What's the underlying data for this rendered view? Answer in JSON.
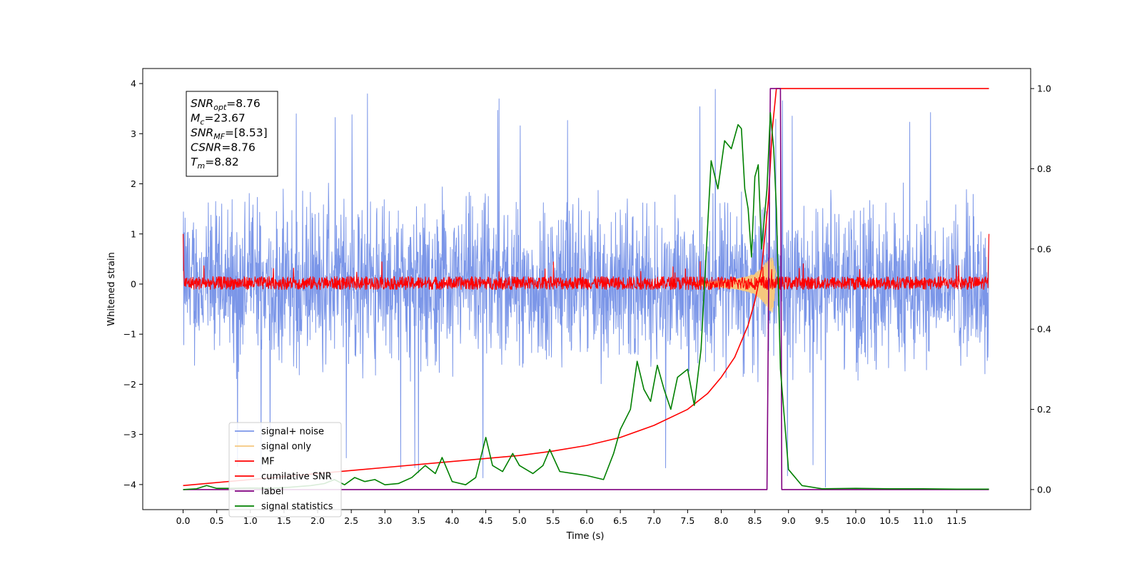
{
  "chart_data": {
    "type": "line",
    "title": "",
    "xlabel": "Time (s)",
    "ylabel": "Whitened strain",
    "xlim": [
      -0.6,
      12.6
    ],
    "ylim": [
      -4.5,
      4.3
    ],
    "y2lim": [
      -0.05,
      1.05
    ],
    "x_ticks": [
      0.0,
      0.5,
      1.0,
      1.5,
      2.0,
      2.5,
      3.0,
      3.5,
      4.0,
      4.5,
      5.0,
      5.5,
      6.0,
      6.5,
      7.0,
      7.5,
      8.0,
      8.5,
      9.0,
      9.5,
      10.0,
      10.5,
      11.0,
      11.5
    ],
    "x_tick_labels": [
      "0.0",
      "0.5",
      "1.0",
      "1.5",
      "2.0",
      "2.5",
      "3.0",
      "3.5",
      "4.0",
      "4.5",
      "5.0",
      "5.5",
      "6.0",
      "6.5",
      "7.0",
      "7.5",
      "8.0",
      "8.5",
      "9.0",
      "9.5",
      "10.0",
      "10.5",
      "11.0",
      "11.5"
    ],
    "y_ticks": [
      -4,
      -3,
      -2,
      -1,
      0,
      1,
      2,
      3,
      4
    ],
    "y_tick_labels": [
      "−4",
      "−3",
      "−2",
      "−1",
      "0",
      "1",
      "2",
      "3",
      "4"
    ],
    "y2_ticks": [
      0.0,
      0.2,
      0.4,
      0.6,
      0.8,
      1.0
    ],
    "y2_tick_labels": [
      "0.0",
      "0.2",
      "0.4",
      "0.6",
      "0.8",
      "1.0"
    ],
    "grid": false,
    "legend_position": "lower-left",
    "annotation": {
      "position": "top-left",
      "lines": [
        {
          "var": "SNR",
          "sub": "opt",
          "value": "=8.76"
        },
        {
          "var": "M",
          "sub": "c",
          "value": "=23.67"
        },
        {
          "var": "SNR",
          "sub": "MF",
          "value": "=[8.53]"
        },
        {
          "var": "CSNR",
          "sub": "",
          "value": "=8.76"
        },
        {
          "var": "T",
          "sub": "m",
          "value": "=8.82"
        }
      ]
    },
    "series": [
      {
        "name": "signal+ noise",
        "color": "#7b96e8",
        "axis": "left",
        "kind": "noise",
        "envelope": {
          "x_start": 0.0,
          "x_end": 11.98,
          "typical_max": 2.5,
          "typical_min": -2.3,
          "peak_max": 3.92,
          "peak_min": -4.15
        }
      },
      {
        "name": "signal only",
        "color": "#f5c77e",
        "axis": "left",
        "kind": "chirp",
        "x": [
          7.6,
          7.8,
          8.0,
          8.2,
          8.4,
          8.5,
          8.6,
          8.65,
          8.7,
          8.73,
          8.76,
          8.8,
          8.85
        ],
        "amplitude": [
          0.02,
          0.04,
          0.07,
          0.1,
          0.16,
          0.22,
          0.32,
          0.42,
          0.5,
          0.55,
          0.58,
          0.3,
          0.0
        ]
      },
      {
        "name": "MF",
        "color": "#ff0000",
        "axis": "left",
        "kind": "noise",
        "envelope": {
          "x_start": 0.0,
          "x_end": 11.98,
          "typical_max": 0.22,
          "typical_min": -0.15,
          "peak_max": 0.45,
          "peak_min": -0.16,
          "edge_value": 1.0
        }
      },
      {
        "name": "cumilative SNR",
        "color": "#ff0000",
        "axis": "right",
        "x": [
          0.0,
          1.0,
          2.0,
          3.0,
          4.0,
          5.0,
          5.5,
          6.0,
          6.5,
          7.0,
          7.5,
          7.8,
          8.0,
          8.2,
          8.4,
          8.5,
          8.6,
          8.7,
          8.76,
          8.82,
          9.0,
          10.0,
          11.0,
          11.98
        ],
        "y": [
          0.01,
          0.025,
          0.04,
          0.055,
          0.07,
          0.085,
          0.096,
          0.11,
          0.13,
          0.16,
          0.2,
          0.24,
          0.28,
          0.33,
          0.41,
          0.47,
          0.55,
          0.72,
          0.9,
          1.0,
          1.0,
          1.0,
          1.0,
          1.0
        ]
      },
      {
        "name": "label",
        "color": "#800080",
        "axis": "right",
        "x": [
          0.0,
          8.68,
          8.73,
          8.88,
          8.9,
          11.98
        ],
        "y": [
          0.0,
          0.0,
          1.0,
          1.0,
          0.0,
          0.0
        ]
      },
      {
        "name": "signal statistics",
        "color": "#008000",
        "axis": "right",
        "x": [
          0.0,
          0.2,
          0.35,
          0.5,
          0.7,
          1.0,
          1.3,
          1.6,
          1.9,
          2.1,
          2.25,
          2.4,
          2.55,
          2.7,
          2.85,
          3.0,
          3.2,
          3.4,
          3.6,
          3.75,
          3.85,
          4.0,
          4.2,
          4.35,
          4.5,
          4.6,
          4.75,
          4.9,
          5.0,
          5.2,
          5.35,
          5.45,
          5.6,
          5.8,
          6.0,
          6.25,
          6.4,
          6.5,
          6.65,
          6.75,
          6.85,
          6.95,
          7.05,
          7.15,
          7.25,
          7.35,
          7.5,
          7.6,
          7.7,
          7.85,
          7.95,
          8.05,
          8.15,
          8.25,
          8.3,
          8.35,
          8.4,
          8.45,
          8.5,
          8.55,
          8.6,
          8.68,
          8.73,
          8.78,
          8.82,
          8.88,
          9.0,
          9.2,
          9.5,
          10.0,
          10.5,
          11.0,
          11.5,
          11.98
        ],
        "y": [
          0.0,
          0.002,
          0.01,
          0.003,
          0.003,
          0.004,
          0.003,
          0.006,
          0.01,
          0.015,
          0.025,
          0.012,
          0.03,
          0.02,
          0.025,
          0.012,
          0.015,
          0.03,
          0.06,
          0.04,
          0.08,
          0.02,
          0.012,
          0.03,
          0.13,
          0.06,
          0.045,
          0.09,
          0.06,
          0.04,
          0.06,
          0.1,
          0.045,
          0.04,
          0.035,
          0.025,
          0.09,
          0.15,
          0.2,
          0.32,
          0.25,
          0.22,
          0.31,
          0.25,
          0.2,
          0.28,
          0.3,
          0.21,
          0.35,
          0.82,
          0.75,
          0.87,
          0.85,
          0.91,
          0.9,
          0.75,
          0.7,
          0.58,
          0.78,
          0.81,
          0.6,
          0.75,
          0.94,
          0.85,
          0.7,
          0.3,
          0.05,
          0.01,
          0.002,
          0.003,
          0.002,
          0.002,
          0.001,
          0.001
        ]
      }
    ]
  }
}
